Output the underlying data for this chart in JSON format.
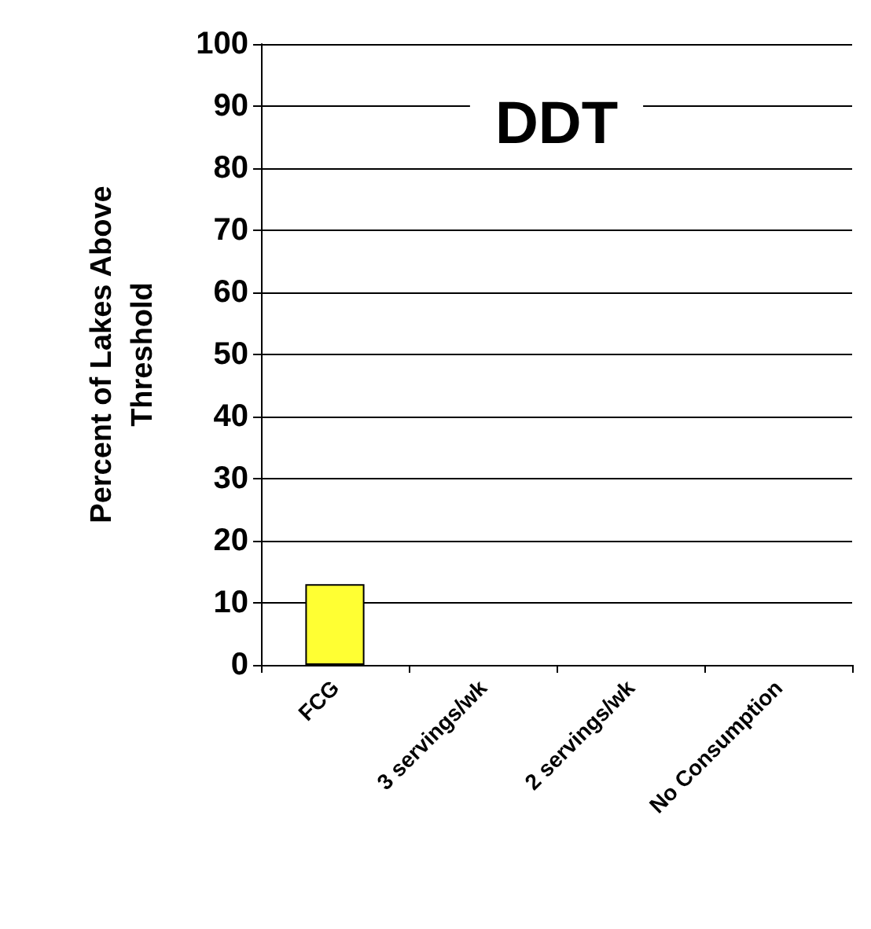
{
  "chart_data": {
    "type": "bar",
    "title": "DDT",
    "ylabel": "Percent of Lakes Above\nThreshold",
    "categories": [
      "FCG",
      "3 servings/wk",
      "2 servings/wk",
      "No Consumption"
    ],
    "values": [
      13,
      0,
      0,
      0
    ],
    "colors": [
      "#ffff33",
      "#bfc41e",
      "#bfc41e",
      "#c00018"
    ],
    "ylim": [
      0,
      100
    ],
    "yticks": [
      0,
      10,
      20,
      30,
      40,
      50,
      60,
      70,
      80,
      90,
      100
    ],
    "grid": "y"
  }
}
